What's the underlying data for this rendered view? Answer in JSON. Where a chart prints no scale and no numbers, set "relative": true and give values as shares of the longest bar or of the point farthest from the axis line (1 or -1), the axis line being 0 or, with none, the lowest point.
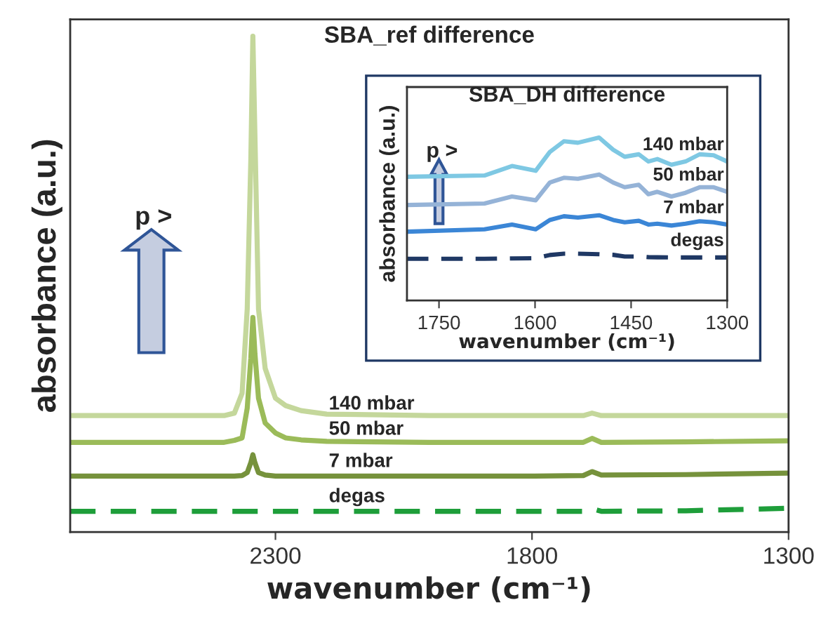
{
  "chart_data": [
    {
      "type": "line",
      "title": "SBA_ref difference",
      "xlabel": "wavenumber (cm⁻¹)",
      "ylabel": "absorbance (a.u.)",
      "relative": true,
      "x": [
        2700,
        2500,
        2400,
        2380,
        2365,
        2355,
        2348,
        2344,
        2340,
        2333,
        2320,
        2300,
        2280,
        2250,
        2200,
        2000,
        1800,
        1700,
        1683,
        1665,
        1500,
        1300
      ],
      "xlim": [
        2700,
        1300
      ],
      "xticks": [
        2300,
        1800,
        1300
      ],
      "annotations": [
        "p >"
      ],
      "series": [
        {
          "name": "140 mbar",
          "color": "#c4d79b",
          "line_style": "solid",
          "values": [
            0.235,
            0.235,
            0.235,
            0.24,
            0.28,
            0.45,
            0.75,
            1.0,
            0.8,
            0.45,
            0.33,
            0.27,
            0.255,
            0.245,
            0.238,
            0.235,
            0.235,
            0.235,
            0.24,
            0.235,
            0.235,
            0.235
          ]
        },
        {
          "name": "50 mbar",
          "color": "#9bbb59",
          "line_style": "solid",
          "values": [
            0.181,
            0.181,
            0.181,
            0.185,
            0.19,
            0.25,
            0.35,
            0.433,
            0.36,
            0.27,
            0.22,
            0.2,
            0.19,
            0.186,
            0.183,
            0.181,
            0.181,
            0.181,
            0.189,
            0.181,
            0.182,
            0.184
          ]
        },
        {
          "name": "7 mbar",
          "color": "#76923c",
          "line_style": "solid",
          "values": [
            0.113,
            0.113,
            0.113,
            0.113,
            0.114,
            0.12,
            0.14,
            0.156,
            0.14,
            0.12,
            0.115,
            0.113,
            0.113,
            0.113,
            0.113,
            0.113,
            0.113,
            0.114,
            0.122,
            0.115,
            0.116,
            0.119
          ]
        },
        {
          "name": "degas",
          "color": "#1e9e3a",
          "line_style": "dashed",
          "values": [
            0.042,
            0.042,
            0.042,
            0.042,
            0.042,
            0.042,
            0.042,
            0.042,
            0.042,
            0.042,
            0.042,
            0.042,
            0.042,
            0.042,
            0.042,
            0.042,
            0.042,
            0.042,
            0.047,
            0.042,
            0.043,
            0.048
          ]
        }
      ]
    },
    {
      "type": "line",
      "title": "SBA_DH difference",
      "xlabel": "wavenumber (cm⁻¹)",
      "ylabel": "absorbance (a.u.)",
      "relative": true,
      "x": [
        1800,
        1679,
        1636,
        1599,
        1577,
        1555,
        1533,
        1500,
        1478,
        1460,
        1438,
        1423,
        1409,
        1387,
        1365,
        1343,
        1321,
        1300
      ],
      "xlim": [
        1800,
        1300
      ],
      "xticks": [
        1750,
        1600,
        1450,
        1300
      ],
      "annotations": [
        "p >"
      ],
      "series": [
        {
          "name": "140 mbar",
          "color": "#7ec8e3",
          "line_style": "solid",
          "values": [
            0.759,
            0.767,
            0.825,
            0.796,
            0.911,
            0.977,
            0.968,
            1.0,
            0.925,
            0.882,
            0.897,
            0.853,
            0.868,
            0.833,
            0.853,
            0.897,
            0.891,
            0.853
          ]
        },
        {
          "name": "50 mbar",
          "color": "#95b3d7",
          "line_style": "solid",
          "values": [
            0.586,
            0.595,
            0.638,
            0.615,
            0.724,
            0.753,
            0.747,
            0.773,
            0.724,
            0.695,
            0.71,
            0.652,
            0.667,
            0.638,
            0.661,
            0.695,
            0.695,
            0.667
          ]
        },
        {
          "name": "7 mbar",
          "color": "#3b86d6",
          "line_style": "solid",
          "values": [
            0.422,
            0.437,
            0.466,
            0.437,
            0.494,
            0.517,
            0.509,
            0.523,
            0.494,
            0.48,
            0.489,
            0.466,
            0.471,
            0.46,
            0.471,
            0.486,
            0.48,
            0.466
          ]
        },
        {
          "name": "degas",
          "color": "#1f3864",
          "line_style": "dashed",
          "values": [
            0.256,
            0.256,
            0.258,
            0.259,
            0.279,
            0.287,
            0.287,
            0.284,
            0.28,
            0.27,
            0.27,
            0.266,
            0.265,
            0.264,
            0.264,
            0.264,
            0.264,
            0.264
          ]
        }
      ]
    }
  ]
}
